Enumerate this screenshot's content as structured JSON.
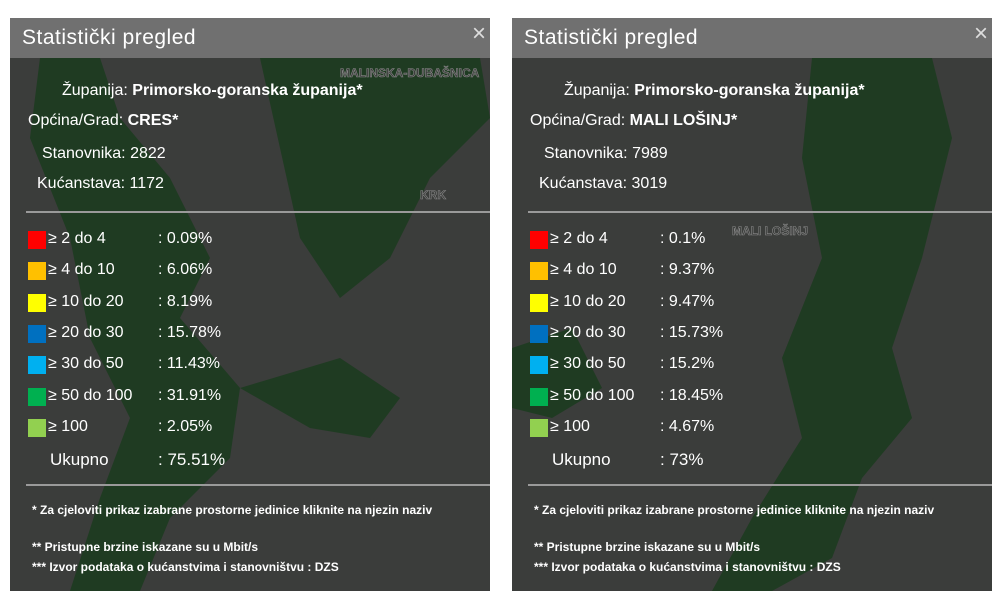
{
  "panels": [
    {
      "title": "Statistički pregled",
      "close": "×",
      "county_label": "Županija:",
      "county": "Primorsko-goranska županija*",
      "municipality_label": "Općina/Grad:",
      "municipality": "CRES*",
      "population_label": "Stanovnika:",
      "population": 2822,
      "households_label": "Kućanstava:",
      "households": 1172,
      "rows": [
        {
          "label": "≥ 2 do 4",
          "value": ": 0.09%",
          "color": "#ff0000"
        },
        {
          "label": "≥ 4 do 10",
          "value": ": 6.06%",
          "color": "#ffc000"
        },
        {
          "label": "≥ 10 do 20",
          "value": ": 8.19%",
          "color": "#ffff00"
        },
        {
          "label": "≥ 20 do 30",
          "value": ": 15.78%",
          "color": "#0070c0"
        },
        {
          "label": "≥ 30 do 50",
          "value": ": 11.43%",
          "color": "#00b0f0"
        },
        {
          "label": "≥ 50 do 100",
          "value": ": 31.91%",
          "color": "#00b050"
        },
        {
          "label": "≥ 100",
          "value": ": 2.05%",
          "color": "#92d050"
        }
      ],
      "total": {
        "label": "Ukupno",
        "value": ": 75.51%"
      },
      "notes": [
        "* Za cjeloviti prikaz izabrane prostorne jedinice kliknite na njezin naziv",
        "** Pristupne brzine iskazane su u Mbit/s",
        "*** Izvor podataka o kućanstvima i stanovništvu : DZS"
      ],
      "map_labels": [
        "MALINSKA-DUBAŠNICA",
        "KRK"
      ]
    },
    {
      "title": "Statistički pregled",
      "close": "×",
      "county_label": "Županija:",
      "county": "Primorsko-goranska županija*",
      "municipality_label": "Općina/Grad:",
      "municipality": "MALI LOŠINJ*",
      "population_label": "Stanovnika:",
      "population": 7989,
      "households_label": "Kućanstava:",
      "households": 3019,
      "rows": [
        {
          "label": "≥ 2 do 4",
          "value": ": 0.1%",
          "color": "#ff0000"
        },
        {
          "label": "≥ 4 do 10",
          "value": ": 9.37%",
          "color": "#ffc000"
        },
        {
          "label": "≥ 10 do 20",
          "value": ": 9.47%",
          "color": "#ffff00"
        },
        {
          "label": "≥ 20 do 30",
          "value": ": 15.73%",
          "color": "#0070c0"
        },
        {
          "label": "≥ 30 do 50",
          "value": ": 15.2%",
          "color": "#00b0f0"
        },
        {
          "label": "≥ 50 do 100",
          "value": ": 18.45%",
          "color": "#00b050"
        },
        {
          "label": "≥ 100",
          "value": ": 4.67%",
          "color": "#92d050"
        }
      ],
      "total": {
        "label": "Ukupno",
        "value": ": 73%"
      },
      "notes": [
        "* Za cjeloviti prikaz izabrane prostorne jedinice kliknite na njezin naziv",
        "** Pristupne brzine iskazane su u Mbit/s",
        "*** Izvor podataka o kućanstvima i stanovništvu : DZS"
      ],
      "map_labels": [
        "MALI LOŠINJ"
      ]
    }
  ]
}
